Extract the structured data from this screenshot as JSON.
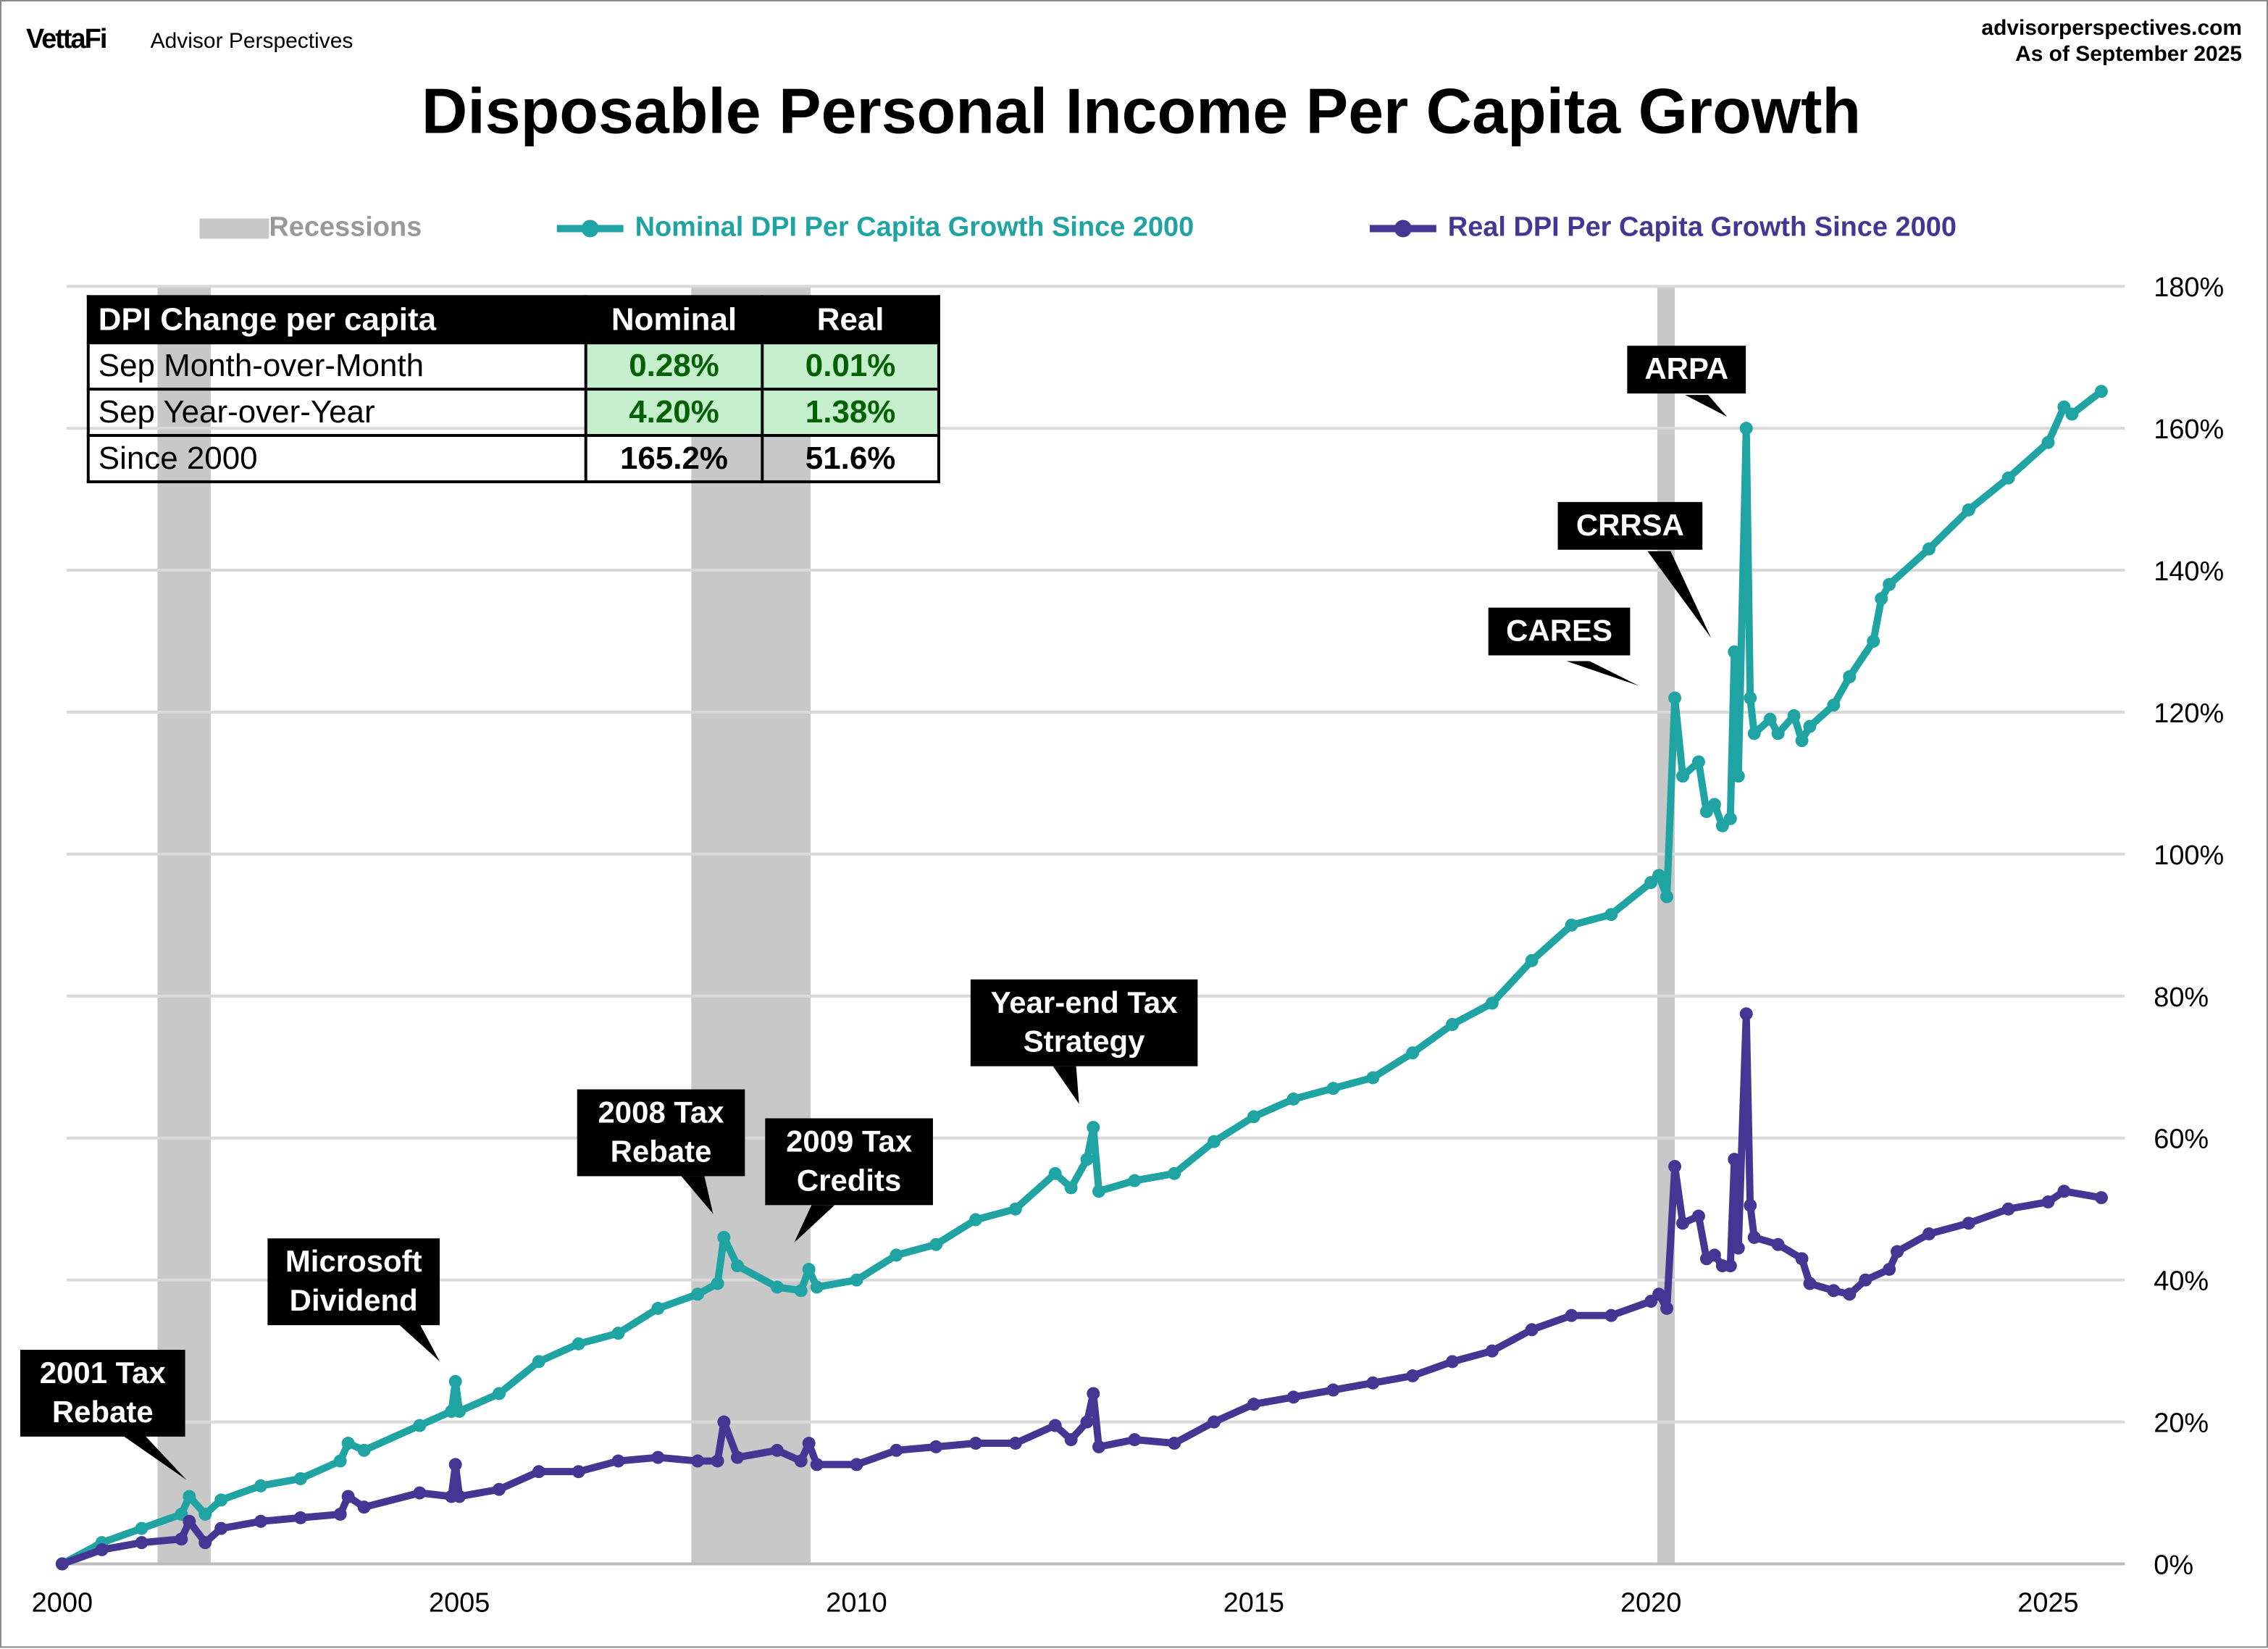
{
  "header": {
    "brand": "VettaFi",
    "brand_sub": "Advisor Perspectives",
    "site": "advisorperspectives.com",
    "as_of": "As of September 2025"
  },
  "table": {
    "headers": [
      "DPI Change per capita",
      "Nominal",
      "Real"
    ],
    "rows": [
      [
        "Sep Month-over-Month",
        "0.28%",
        "0.01%"
      ],
      [
        "Sep Year-over-Year",
        "4.20%",
        "1.38%"
      ],
      [
        "Since 2000",
        "165.2%",
        "51.6%"
      ]
    ]
  },
  "chart_data": {
    "type": "line",
    "title": "Disposable Personal Income Per Capita Growth",
    "xlabel": "",
    "ylabel": "",
    "xlim": [
      2000,
      2026
    ],
    "ylim": [
      0,
      180
    ],
    "x_ticks": [
      "2000",
      "2005",
      "2010",
      "2015",
      "2020",
      "2025"
    ],
    "y_ticks": [
      "0%",
      "20%",
      "40%",
      "60%",
      "80%",
      "100%",
      "120%",
      "140%",
      "160%",
      "180%"
    ],
    "y_axis_side": "right",
    "grid": "horizontal",
    "legend_placement": "top",
    "recessions": {
      "name": "Recessions",
      "color": "#c8c8c8",
      "periods": [
        [
          2001.2,
          2001.87
        ],
        [
          2007.92,
          2009.42
        ],
        [
          2020.08,
          2020.3
        ]
      ]
    },
    "series": [
      {
        "name": "Nominal DPI Per Capita Growth Since 2000",
        "color": "#1fa3a3",
        "points": [
          [
            2000,
            0
          ],
          [
            2000.5,
            3
          ],
          [
            2001,
            5
          ],
          [
            2001.5,
            7
          ],
          [
            2001.6,
            9.5
          ],
          [
            2001.8,
            7
          ],
          [
            2002,
            9
          ],
          [
            2002.5,
            11
          ],
          [
            2003,
            12
          ],
          [
            2003.5,
            14.5
          ],
          [
            2003.6,
            17
          ],
          [
            2003.8,
            16
          ],
          [
            2004.5,
            19.5
          ],
          [
            2004.9,
            21.5
          ],
          [
            2004.95,
            25.7
          ],
          [
            2005,
            21.5
          ],
          [
            2005.5,
            24
          ],
          [
            2006,
            28.5
          ],
          [
            2006.5,
            31
          ],
          [
            2007,
            32.5
          ],
          [
            2007.5,
            36
          ],
          [
            2008,
            38
          ],
          [
            2008.25,
            39.5
          ],
          [
            2008.33,
            46
          ],
          [
            2008.5,
            42
          ],
          [
            2009,
            39
          ],
          [
            2009.3,
            38.5
          ],
          [
            2009.4,
            41.5
          ],
          [
            2009.5,
            39
          ],
          [
            2010,
            40
          ],
          [
            2010.5,
            43.5
          ],
          [
            2011,
            45
          ],
          [
            2011.5,
            48.5
          ],
          [
            2012,
            50
          ],
          [
            2012.5,
            55
          ],
          [
            2012.7,
            53
          ],
          [
            2012.9,
            57
          ],
          [
            2012.98,
            61.5
          ],
          [
            2013.05,
            52.5
          ],
          [
            2013.5,
            54
          ],
          [
            2014,
            55
          ],
          [
            2014.5,
            59.5
          ],
          [
            2015,
            63
          ],
          [
            2015.5,
            65.5
          ],
          [
            2016,
            67
          ],
          [
            2016.5,
            68.5
          ],
          [
            2017,
            72
          ],
          [
            2017.5,
            76
          ],
          [
            2018,
            79
          ],
          [
            2018.5,
            85
          ],
          [
            2019,
            90
          ],
          [
            2019.5,
            91.5
          ],
          [
            2020,
            96
          ],
          [
            2020.1,
            97
          ],
          [
            2020.2,
            94
          ],
          [
            2020.3,
            122
          ],
          [
            2020.4,
            111
          ],
          [
            2020.6,
            113
          ],
          [
            2020.7,
            106
          ],
          [
            2020.8,
            107
          ],
          [
            2020.9,
            104
          ],
          [
            2021,
            105
          ],
          [
            2021.05,
            128.5
          ],
          [
            2021.1,
            111
          ],
          [
            2021.2,
            160
          ],
          [
            2021.25,
            122
          ],
          [
            2021.3,
            117
          ],
          [
            2021.5,
            119
          ],
          [
            2021.6,
            117
          ],
          [
            2021.8,
            119.5
          ],
          [
            2021.9,
            116
          ],
          [
            2022,
            118
          ],
          [
            2022.3,
            121
          ],
          [
            2022.5,
            125
          ],
          [
            2022.8,
            130
          ],
          [
            2022.9,
            136
          ],
          [
            2023,
            138
          ],
          [
            2023.5,
            143
          ],
          [
            2024,
            148.5
          ],
          [
            2024.5,
            153
          ],
          [
            2025,
            158
          ],
          [
            2025.2,
            163
          ],
          [
            2025.3,
            162
          ],
          [
            2025.67,
            165.2
          ]
        ]
      },
      {
        "name": "Real DPI Per Capita Growth Since 2000",
        "color": "#463694",
        "points": [
          [
            2000,
            0
          ],
          [
            2000.5,
            2
          ],
          [
            2001,
            3
          ],
          [
            2001.5,
            3.5
          ],
          [
            2001.6,
            6
          ],
          [
            2001.8,
            3
          ],
          [
            2002,
            5
          ],
          [
            2002.5,
            6
          ],
          [
            2003,
            6.5
          ],
          [
            2003.5,
            7
          ],
          [
            2003.6,
            9.5
          ],
          [
            2003.8,
            8
          ],
          [
            2004.5,
            10
          ],
          [
            2004.9,
            9.5
          ],
          [
            2004.95,
            14
          ],
          [
            2005,
            9.5
          ],
          [
            2005.5,
            10.5
          ],
          [
            2006,
            13
          ],
          [
            2006.5,
            13
          ],
          [
            2007,
            14.5
          ],
          [
            2007.5,
            15
          ],
          [
            2008,
            14.5
          ],
          [
            2008.25,
            14.5
          ],
          [
            2008.33,
            20
          ],
          [
            2008.5,
            15
          ],
          [
            2009,
            16
          ],
          [
            2009.3,
            14.5
          ],
          [
            2009.4,
            17
          ],
          [
            2009.5,
            14
          ],
          [
            2010,
            14
          ],
          [
            2010.5,
            16
          ],
          [
            2011,
            16.5
          ],
          [
            2011.5,
            17
          ],
          [
            2012,
            17
          ],
          [
            2012.5,
            19.5
          ],
          [
            2012.7,
            17.5
          ],
          [
            2012.9,
            20
          ],
          [
            2012.98,
            24
          ],
          [
            2013.05,
            16.5
          ],
          [
            2013.5,
            17.5
          ],
          [
            2014,
            17
          ],
          [
            2014.5,
            20
          ],
          [
            2015,
            22.5
          ],
          [
            2015.5,
            23.5
          ],
          [
            2016,
            24.5
          ],
          [
            2016.5,
            25.5
          ],
          [
            2017,
            26.5
          ],
          [
            2017.5,
            28.5
          ],
          [
            2018,
            30
          ],
          [
            2018.5,
            33
          ],
          [
            2019,
            35
          ],
          [
            2019.5,
            35
          ],
          [
            2020,
            37
          ],
          [
            2020.1,
            38
          ],
          [
            2020.2,
            36
          ],
          [
            2020.3,
            56
          ],
          [
            2020.4,
            48
          ],
          [
            2020.6,
            49
          ],
          [
            2020.7,
            43
          ],
          [
            2020.8,
            43.5
          ],
          [
            2020.9,
            42
          ],
          [
            2021,
            42
          ],
          [
            2021.05,
            57
          ],
          [
            2021.1,
            44.5
          ],
          [
            2021.2,
            77.5
          ],
          [
            2021.25,
            50.5
          ],
          [
            2021.3,
            46
          ],
          [
            2021.6,
            45
          ],
          [
            2021.9,
            43
          ],
          [
            2022,
            39.5
          ],
          [
            2022.3,
            38.5
          ],
          [
            2022.5,
            38
          ],
          [
            2022.7,
            40
          ],
          [
            2023,
            41.5
          ],
          [
            2023.1,
            44
          ],
          [
            2023.5,
            46.5
          ],
          [
            2024,
            48
          ],
          [
            2024.5,
            50
          ],
          [
            2025,
            51
          ],
          [
            2025.2,
            52.5
          ],
          [
            2025.67,
            51.6
          ]
        ]
      }
    ],
    "annotations": [
      "2001 Tax Rebate",
      "Microsoft Dividend",
      "2008 Tax Rebate",
      "2009 Tax Credits",
      "Year-end Tax Strategy",
      "CARES",
      "CRRSA",
      "ARPA"
    ]
  }
}
